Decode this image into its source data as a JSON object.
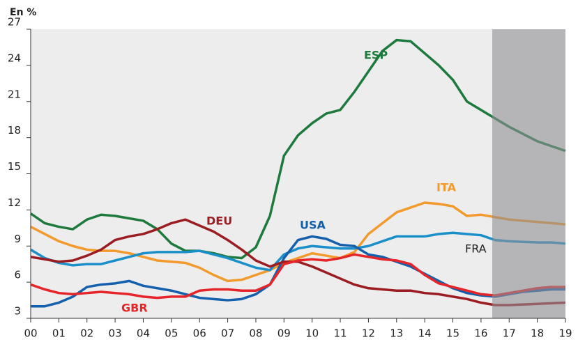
{
  "chart_data": {
    "type": "line",
    "y_label": "En %",
    "x": [
      2000,
      2000.5,
      2001,
      2001.5,
      2002,
      2002.5,
      2003,
      2003.5,
      2004,
      2004.5,
      2005,
      2005.5,
      2006,
      2006.5,
      2007,
      2007.5,
      2008,
      2008.5,
      2009,
      2009.5,
      2010,
      2010.5,
      2011,
      2011.5,
      2012,
      2012.5,
      2013,
      2013.5,
      2014,
      2014.5,
      2015,
      2015.5,
      2016,
      2016.5,
      2017,
      2017.5,
      2018,
      2018.5,
      2019
    ],
    "series": [
      {
        "name": "ESP",
        "color": "#1e7a3c",
        "values": [
          11.7,
          10.9,
          10.6,
          10.4,
          11.2,
          11.6,
          11.5,
          11.3,
          11.1,
          10.4,
          9.2,
          8.6,
          8.6,
          8.4,
          8.1,
          8.0,
          8.9,
          11.5,
          16.5,
          18.2,
          19.2,
          20.0,
          20.3,
          21.8,
          23.5,
          25.2,
          26.1,
          26.0,
          25.0,
          24.0,
          22.8,
          21.0,
          20.3,
          19.6,
          18.9,
          18.3,
          17.7,
          17.3,
          16.9
        ]
      },
      {
        "name": "ITA",
        "color": "#f39a2c",
        "values": [
          10.6,
          10.0,
          9.4,
          9.0,
          8.7,
          8.6,
          8.6,
          8.4,
          8.1,
          7.8,
          7.7,
          7.6,
          7.2,
          6.6,
          6.1,
          6.2,
          6.6,
          7.0,
          7.6,
          8.0,
          8.4,
          8.2,
          8.0,
          8.5,
          10.0,
          10.9,
          11.8,
          12.2,
          12.6,
          12.5,
          12.3,
          11.5,
          11.6,
          11.4,
          11.2,
          11.1,
          11.0,
          10.9,
          10.8
        ]
      },
      {
        "name": "FRA",
        "color": "#1a8fc9",
        "values": [
          8.7,
          8.0,
          7.6,
          7.4,
          7.5,
          7.5,
          7.8,
          8.1,
          8.4,
          8.5,
          8.5,
          8.5,
          8.6,
          8.3,
          8.0,
          7.6,
          7.2,
          7.0,
          8.3,
          8.8,
          9.0,
          8.9,
          8.8,
          8.8,
          9.0,
          9.4,
          9.8,
          9.8,
          9.8,
          10.0,
          10.1,
          10.0,
          9.9,
          9.5,
          9.4,
          9.35,
          9.3,
          9.3,
          9.2
        ]
      },
      {
        "name": "USA",
        "color": "#1560ad",
        "values": [
          4.0,
          4.0,
          4.3,
          4.8,
          5.6,
          5.8,
          5.9,
          6.1,
          5.7,
          5.5,
          5.3,
          5.0,
          4.7,
          4.6,
          4.5,
          4.6,
          5.0,
          5.8,
          8.0,
          9.5,
          9.8,
          9.6,
          9.1,
          9.0,
          8.3,
          8.1,
          7.7,
          7.3,
          6.7,
          6.1,
          5.5,
          5.1,
          4.9,
          4.8,
          5.0,
          5.2,
          5.3,
          5.4,
          5.4
        ]
      },
      {
        "name": "DEU",
        "color": "#9b1d22",
        "values": [
          8.1,
          7.9,
          7.7,
          7.8,
          8.2,
          8.7,
          9.5,
          9.8,
          10.0,
          10.4,
          10.9,
          11.2,
          10.7,
          10.2,
          9.5,
          8.7,
          7.8,
          7.3,
          7.7,
          7.7,
          7.3,
          6.8,
          6.3,
          5.8,
          5.5,
          5.4,
          5.3,
          5.3,
          5.1,
          5.0,
          4.8,
          4.6,
          4.3,
          4.1,
          4.1,
          4.15,
          4.2,
          4.25,
          4.3
        ]
      },
      {
        "name": "GBR",
        "color": "#e52528",
        "values": [
          5.8,
          5.4,
          5.1,
          5.0,
          5.1,
          5.2,
          5.1,
          5.0,
          4.8,
          4.7,
          4.8,
          4.8,
          5.3,
          5.4,
          5.4,
          5.3,
          5.3,
          5.8,
          7.5,
          7.8,
          7.9,
          7.8,
          8.0,
          8.3,
          8.1,
          7.9,
          7.8,
          7.5,
          6.6,
          5.9,
          5.6,
          5.3,
          5.0,
          4.9,
          5.1,
          5.3,
          5.5,
          5.6,
          5.6
        ]
      }
    ],
    "forecast_region": [
      2016.4,
      2019
    ],
    "xlim": [
      2000,
      2019
    ],
    "xticks": [
      {
        "value": 2000,
        "label": "00"
      },
      {
        "value": 2001,
        "label": "01"
      },
      {
        "value": 2002,
        "label": "02"
      },
      {
        "value": 2003,
        "label": "03"
      },
      {
        "value": 2004,
        "label": "04"
      },
      {
        "value": 2005,
        "label": "05"
      },
      {
        "value": 2006,
        "label": "06"
      },
      {
        "value": 2007,
        "label": "07"
      },
      {
        "value": 2008,
        "label": "08"
      },
      {
        "value": 2009,
        "label": "09"
      },
      {
        "value": 2010,
        "label": "10"
      },
      {
        "value": 2011,
        "label": "11"
      },
      {
        "value": 2012,
        "label": "12"
      },
      {
        "value": 2013,
        "label": "13"
      },
      {
        "value": 2014,
        "label": "14"
      },
      {
        "value": 2015,
        "label": "15"
      },
      {
        "value": 2016,
        "label": "16"
      },
      {
        "value": 2017,
        "label": "17"
      },
      {
        "value": 2018,
        "label": "18"
      },
      {
        "value": 2019,
        "label": "19"
      }
    ],
    "ylim": [
      3,
      27
    ],
    "yticks": [
      3,
      6,
      9,
      12,
      15,
      18,
      21,
      24,
      27
    ]
  }
}
